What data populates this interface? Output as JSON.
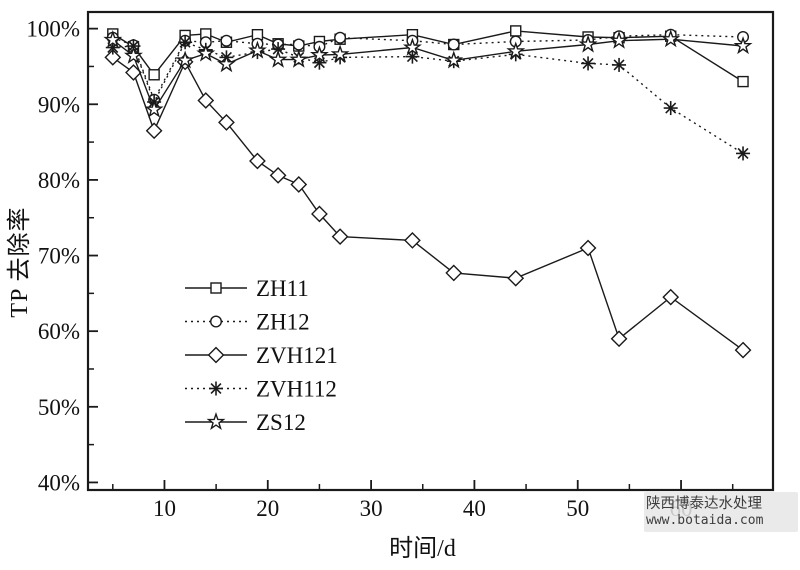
{
  "watermark": {
    "line1": "陕西博泰达水处理",
    "line2": "www.botaida.com"
  },
  "chart_data": {
    "type": "line",
    "title": "",
    "xlabel": "时间/d",
    "ylabel": "TP 去除率",
    "grid": false,
    "colors": {
      "stroke": "#1a1a1a",
      "background": "#ffffff"
    },
    "x": [
      5,
      7,
      9,
      12,
      14,
      16,
      19,
      21,
      23,
      25,
      27,
      34,
      38,
      44,
      51,
      54,
      59,
      66
    ],
    "series": [
      {
        "name": "ZH11",
        "marker": "square",
        "line": "solid",
        "values": [
          99.3,
          97.6,
          93.9,
          99.1,
          99.3,
          98.2,
          99.2,
          98.0,
          97.7,
          98.3,
          98.6,
          99.2,
          97.9,
          99.7,
          98.9,
          98.8,
          99.0,
          93.0
        ]
      },
      {
        "name": "ZH12",
        "marker": "circle",
        "line": "dotted",
        "values": [
          98.8,
          97.8,
          90.6,
          98.4,
          98.2,
          98.4,
          98.0,
          97.9,
          97.9,
          97.6,
          98.8,
          98.4,
          97.9,
          98.3,
          98.5,
          99.0,
          99.2,
          98.9
        ]
      },
      {
        "name": "ZVH121",
        "marker": "diamond",
        "line": "solid",
        "values": [
          96.2,
          94.2,
          86.5,
          95.6,
          90.5,
          87.6,
          82.5,
          80.6,
          79.4,
          75.5,
          72.5,
          72.0,
          67.7,
          67.0,
          71.0,
          59.0,
          64.5,
          57.5
        ]
      },
      {
        "name": "ZVH112",
        "marker": "asterisk",
        "line": "dotted",
        "values": [
          97.5,
          97.7,
          90.3,
          98.2,
          97.2,
          96.2,
          96.9,
          97.3,
          96.2,
          95.5,
          96.2,
          96.3,
          95.7,
          96.6,
          95.4,
          95.2,
          89.5,
          83.5
        ]
      },
      {
        "name": "ZS12",
        "marker": "star",
        "line": "solid",
        "values": [
          98.5,
          96.4,
          89.3,
          95.8,
          96.7,
          95.3,
          97.1,
          95.9,
          95.9,
          96.5,
          96.6,
          97.5,
          95.8,
          97.0,
          97.9,
          98.4,
          98.6,
          97.7
        ]
      }
    ],
    "x_axis": {
      "range": [
        2.6,
        68.9
      ],
      "major_ticks": [
        10,
        20,
        30,
        40,
        50,
        60
      ],
      "labels": [
        "10",
        "20",
        "30",
        "40",
        "50",
        "60"
      ],
      "minor_ticks": [
        5,
        15,
        25,
        35,
        45,
        55,
        65
      ]
    },
    "y_axis": {
      "range": [
        39,
        102.2
      ],
      "major_ticks": [
        40,
        50,
        60,
        70,
        80,
        90,
        100
      ],
      "labels": [
        "40%",
        "50%",
        "60%",
        "70%",
        "80%",
        "90%",
        "100%"
      ],
      "minor_ticks": [
        45,
        55,
        65,
        75,
        85,
        95
      ]
    },
    "legend": {
      "position": "inside-left-middle",
      "items": [
        "ZH11",
        "ZH12",
        "ZVH121",
        "ZVH112",
        "ZS12"
      ]
    }
  }
}
